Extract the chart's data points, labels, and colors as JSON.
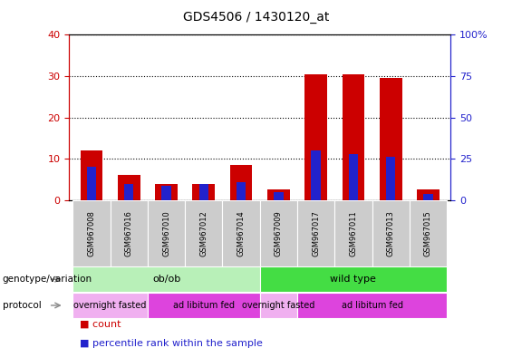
{
  "title": "GDS4506 / 1430120_at",
  "samples": [
    "GSM967008",
    "GSM967016",
    "GSM967010",
    "GSM967012",
    "GSM967014",
    "GSM967009",
    "GSM967017",
    "GSM967011",
    "GSM967013",
    "GSM967015"
  ],
  "count_values": [
    12,
    6,
    4,
    4,
    8.5,
    2.5,
    30.5,
    30.5,
    29.5,
    2.5
  ],
  "percentile_values": [
    20,
    10,
    8.5,
    10,
    11,
    5,
    30,
    28,
    26,
    4
  ],
  "ylim_left": [
    0,
    40
  ],
  "ylim_right": [
    0,
    100
  ],
  "yticks_left": [
    0,
    10,
    20,
    30,
    40
  ],
  "yticks_right": [
    0,
    25,
    50,
    75,
    100
  ],
  "bar_width": 0.6,
  "blue_bar_width": 0.25,
  "count_color": "#cc0000",
  "percentile_color": "#2222cc",
  "grid_color": "#000000",
  "plot_bg": "#ffffff",
  "fig_bg": "#ffffff",
  "left_axis_color": "#cc0000",
  "right_axis_color": "#2222cc",
  "xtick_bg": "#cccccc",
  "genotype_groups": [
    {
      "label": "ob/ob",
      "start": 0,
      "end": 5,
      "color": "#b8f0b8"
    },
    {
      "label": "wild type",
      "start": 5,
      "end": 10,
      "color": "#44dd44"
    }
  ],
  "protocol_groups": [
    {
      "label": "overnight fasted",
      "start": 0,
      "end": 2,
      "color": "#f0b0f0"
    },
    {
      "label": "ad libitum fed",
      "start": 2,
      "end": 5,
      "color": "#dd44dd"
    },
    {
      "label": "overnight fasted",
      "start": 5,
      "end": 6,
      "color": "#f0b0f0"
    },
    {
      "label": "ad libitum fed",
      "start": 6,
      "end": 10,
      "color": "#dd44dd"
    }
  ],
  "legend_items": [
    {
      "label": "count",
      "color": "#cc0000"
    },
    {
      "label": "percentile rank within the sample",
      "color": "#2222cc"
    }
  ],
  "genotype_label": "genotype/variation",
  "protocol_label": "protocol"
}
